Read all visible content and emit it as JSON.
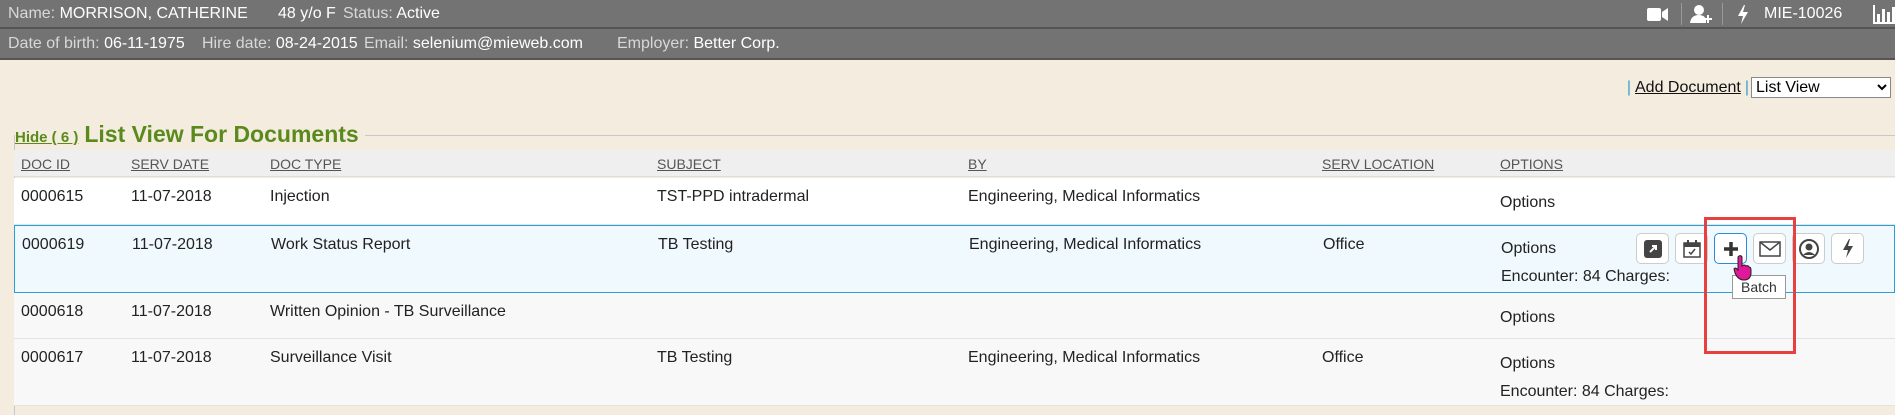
{
  "header": {
    "name_label": "Name:",
    "name": "MORRISON, CATHERINE",
    "age_sex": "48 y/o F",
    "status_label": "Status:",
    "status": "Active",
    "account": "MIE-10026",
    "dob_label": "Date of birth:",
    "dob": "06-11-1975",
    "hire_label": "Hire date:",
    "hire": "08-24-2015",
    "email_label": "Email:",
    "email": "selenium@mieweb.com",
    "employer_label": "Employer:",
    "employer": "Better Corp.",
    "icons": [
      "video-camera-icon",
      "add-user-icon",
      "lightning-icon",
      "bar-chart-icon"
    ]
  },
  "toolbar": {
    "add_document": "Add Document",
    "view_select": "List View"
  },
  "section": {
    "hide_link": "Hide ( 6 )",
    "title": "List View For Documents"
  },
  "table": {
    "columns": [
      "DOC ID",
      "SERV DATE",
      "DOC TYPE",
      "SUBJECT",
      "BY",
      "SERV LOCATION",
      "OPTIONS"
    ],
    "rows": [
      {
        "doc_id": "0000615",
        "serv_date": "11-07-2018",
        "doc_type": "Injection",
        "subject": "TST-PPD intradermal",
        "by": "Engineering, Medical Informatics",
        "location": "",
        "options": "Options",
        "extra": ""
      },
      {
        "doc_id": "0000619",
        "serv_date": "11-07-2018",
        "doc_type": "Work Status Report",
        "subject": "TB Testing",
        "by": "Engineering, Medical Informatics",
        "location": "Office",
        "options": "Options",
        "extra": "Encounter: 84 Charges:"
      },
      {
        "doc_id": "0000618",
        "serv_date": "11-07-2018",
        "doc_type": "Written Opinion - TB Surveillance",
        "subject": "",
        "by": "",
        "location": "",
        "options": "Options",
        "extra": ""
      },
      {
        "doc_id": "0000617",
        "serv_date": "11-07-2018",
        "doc_type": "Surveillance Visit",
        "subject": "TB Testing",
        "by": "Engineering, Medical Informatics",
        "location": "Office",
        "options": "Options",
        "extra": "Encounter: 84 Charges:"
      }
    ]
  },
  "row_actions": {
    "icons": [
      "open-external-icon",
      "calendar-check-icon",
      "plus-icon",
      "envelope-icon",
      "user-circle-icon",
      "lightning-icon"
    ],
    "tooltip": "Batch"
  },
  "colors": {
    "header_bg": "#737373",
    "page_bg": "#f3ecdf",
    "title_green": "#5b8a1c",
    "selected_border": "#2aa0d8",
    "highlight_red": "#e84040"
  }
}
